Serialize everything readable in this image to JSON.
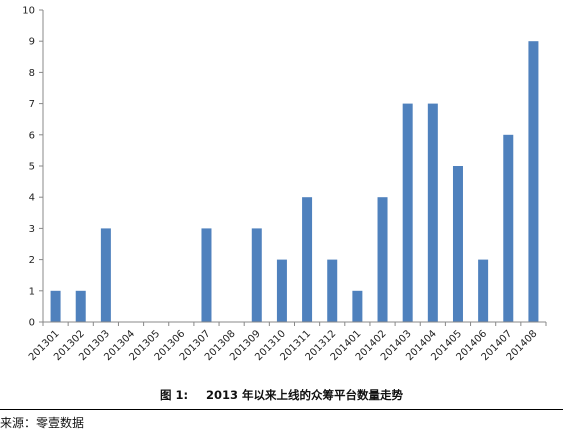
{
  "chart_data": {
    "type": "bar",
    "categories": [
      "201301",
      "201302",
      "201303",
      "201304",
      "201305",
      "201306",
      "201307",
      "201308",
      "201309",
      "201310",
      "201311",
      "201312",
      "201401",
      "201402",
      "201403",
      "201404",
      "201405",
      "201406",
      "201407",
      "201408"
    ],
    "values": [
      1,
      1,
      3,
      0,
      0,
      0,
      3,
      0,
      3,
      2,
      4,
      2,
      1,
      4,
      7,
      7,
      5,
      2,
      6,
      9
    ],
    "ylim": [
      0,
      10
    ],
    "yticks": [
      0,
      1,
      2,
      3,
      4,
      5,
      6,
      7,
      8,
      9,
      10
    ],
    "grid": false,
    "legend": "none",
    "bar_color": "#4F81BD"
  },
  "caption": {
    "figure_label": "图 1:",
    "title": "2013 年以来上线的众筹平台数量走势"
  },
  "source_note": "来源：零壹数据"
}
